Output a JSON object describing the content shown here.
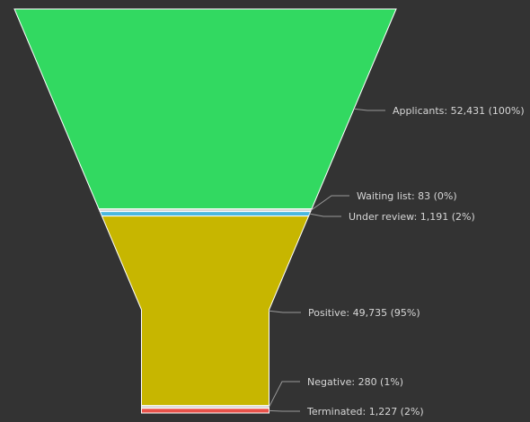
{
  "chart_data": {
    "type": "funnel",
    "stages": [
      {
        "name": "Applicants",
        "value": 52431,
        "label": "Applicants: 52,431 (100%)",
        "color": "#32d961"
      },
      {
        "name": "Waiting list",
        "value": 83,
        "label": "Waiting list: 83 (0%)",
        "color": "#d6d6d6"
      },
      {
        "name": "Under review",
        "value": 1191,
        "label": "Under review: 1,191 (2%)",
        "color": "#4ab8e0"
      },
      {
        "name": "Positive",
        "value": 49735,
        "label": "Positive: 49,735 (95%)",
        "color": "#c7b600"
      },
      {
        "name": "Negative",
        "value": 280,
        "label": "Negative: 280 (1%)",
        "color": "#d6d6d6"
      },
      {
        "name": "Terminated",
        "value": 1227,
        "label": "Terminated: 1,227 (2%)",
        "color": "#e8524a"
      }
    ],
    "background": "#333333",
    "neck": true
  }
}
